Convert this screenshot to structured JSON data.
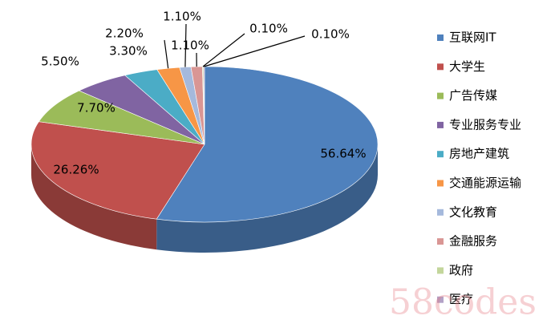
{
  "chart_data": {
    "type": "pie3d",
    "categories": [
      "互联网IT",
      "大学生",
      "广告传媒",
      "专业服务专业",
      "房地产建筑",
      "交通能源运输",
      "文化教育",
      "金融服务",
      "政府",
      "医疗"
    ],
    "values": [
      56.64,
      26.26,
      7.7,
      5.5,
      3.3,
      2.2,
      1.1,
      1.1,
      0.1,
      0.1
    ],
    "value_labels": [
      "56.64%",
      "26.26%",
      "7.70%",
      "5.50%",
      "3.30%",
      "2.20%",
      "1.10%",
      "1.10%",
      "0.10%",
      "0.10%"
    ],
    "colors": [
      "#4f81bd",
      "#c0504d",
      "#9bbb59",
      "#8064a2",
      "#4bacc6",
      "#f79646",
      "#a5b9dc",
      "#d99694",
      "#c3d69b",
      "#b3a2c7"
    ],
    "legend": "right"
  },
  "watermark": "58codes"
}
